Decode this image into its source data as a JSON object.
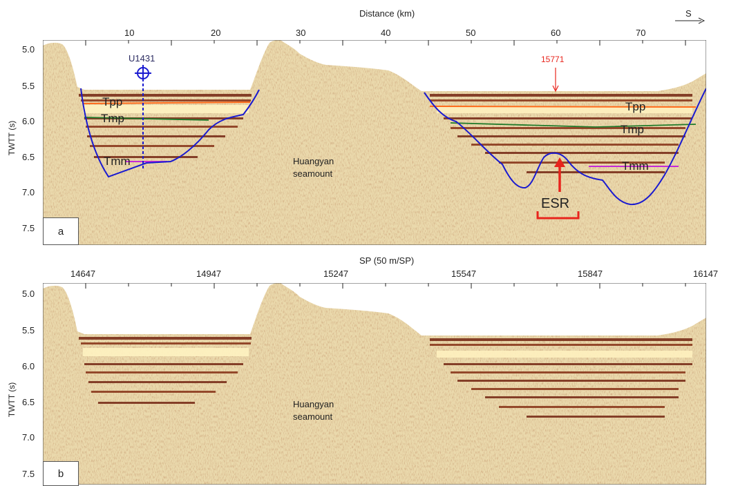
{
  "panel_a": {
    "tag": "a",
    "x_axis_title": "Distance (km)",
    "x_ticks": [
      "10",
      "20",
      "30",
      "40",
      "50",
      "60",
      "70"
    ],
    "y_axis_title": "TWTT (s)",
    "y_ticks": [
      "5.0",
      "5.5",
      "6.0",
      "6.5",
      "7.0",
      "7.5"
    ],
    "direction_label": "S",
    "well_label": "U1431",
    "sp_marker_label": "15771",
    "horizons": [
      {
        "name": "Tpp",
        "color": "#ff6a1a"
      },
      {
        "name": "Tmp",
        "color": "#1f7a2a"
      },
      {
        "name": "Tmm",
        "color": "#c52ad6"
      }
    ],
    "horizon_labels_left": [
      "Tpp",
      "Tmp",
      "Tmm"
    ],
    "horizon_labels_right": [
      "Tpp",
      "Tmp",
      "Tmm"
    ],
    "seamount_label_line1": "Huangyan",
    "seamount_label_line2": "seamount",
    "ridge_label": "ESR",
    "basement_color": "#1a1ad0",
    "annotation_color": "#e8241c"
  },
  "panel_b": {
    "tag": "b",
    "x_axis_title": "SP (50 m/SP)",
    "x_ticks": [
      "14647",
      "14947",
      "15247",
      "15547",
      "15847",
      "16147"
    ],
    "y_axis_title": "TWTT (s)",
    "y_ticks": [
      "5.0",
      "5.5",
      "6.0",
      "6.5",
      "7.0",
      "7.5"
    ],
    "seamount_label_line1": "Huangyan",
    "seamount_label_line2": "seamount"
  }
}
